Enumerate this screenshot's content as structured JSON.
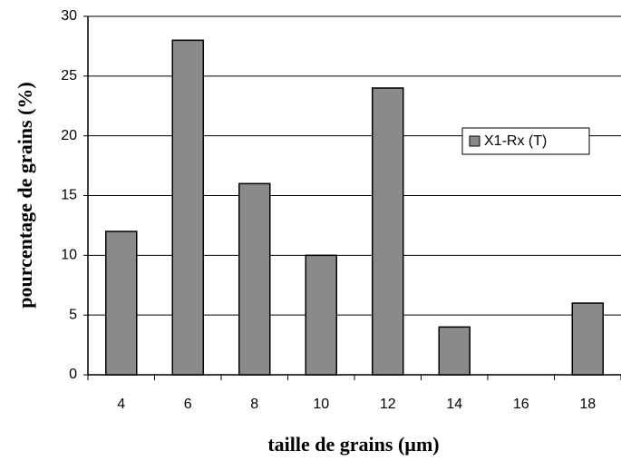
{
  "chart_data": {
    "type": "bar",
    "xlabel": "taille de grains (µm)",
    "ylabel": "pourcentage de grains (%)",
    "categories": [
      "4",
      "6",
      "8",
      "10",
      "12",
      "14",
      "16",
      "18"
    ],
    "series": [
      {
        "name": "X1-Rx (T)",
        "color": "#8a8a8a",
        "values": [
          12,
          28,
          16,
          10,
          24,
          4,
          0,
          6
        ]
      }
    ],
    "ylim": [
      0,
      30
    ],
    "yticks": [
      0,
      5,
      10,
      15,
      20,
      25,
      30
    ],
    "grid": true,
    "legend": "right"
  }
}
